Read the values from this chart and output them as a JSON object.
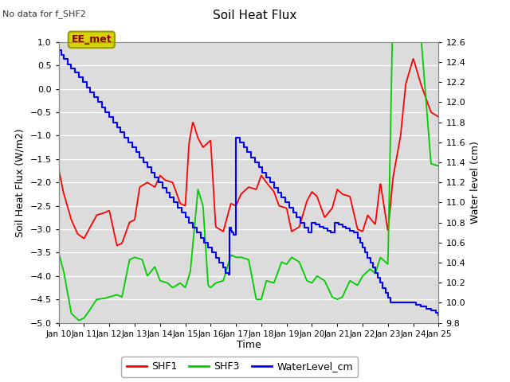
{
  "title": "Soil Heat Flux",
  "title_note": "No data for f_SHF2",
  "ylabel_left": "Soil Heat Flux (W/m2)",
  "ylabel_right": "Water level (cm)",
  "xlabel": "Time",
  "ylim_left": [
    -5.0,
    1.0
  ],
  "ylim_right": [
    9.8,
    12.6
  ],
  "xtick_labels": [
    "Jan 10",
    "Jan 11",
    "Jan 12",
    "Jan 13",
    "Jan 14",
    "Jan 15",
    "Jan 16",
    "Jan 17",
    "Jan 18",
    "Jan 19",
    "Jan 20",
    "Jan 21",
    "Jan 22",
    "Jan 23",
    "Jan 24",
    "Jan 25"
  ],
  "ee_met_label": "EE_met",
  "bg_color": "#dcdcdc",
  "color_shf1": "#ff0000",
  "color_shf3": "#00cc00",
  "color_wl": "#0000ff",
  "shf1_x": [
    0.0,
    0.18,
    0.5,
    0.75,
    1.0,
    1.2,
    1.5,
    1.8,
    2.0,
    2.3,
    2.5,
    2.8,
    3.0,
    3.2,
    3.5,
    3.8,
    4.0,
    4.2,
    4.5,
    4.8,
    5.0,
    5.15,
    5.3,
    5.5,
    5.7,
    6.0,
    6.2,
    6.5,
    6.8,
    7.0,
    7.2,
    7.5,
    7.8,
    8.0,
    8.2,
    8.5,
    8.7,
    9.0,
    9.2,
    9.5,
    9.8,
    10.0,
    10.2,
    10.5,
    10.8,
    11.0,
    11.2,
    11.5,
    11.8,
    12.0,
    12.2,
    12.5,
    12.7,
    13.0,
    13.2,
    13.5,
    13.7,
    14.0,
    14.3,
    14.7,
    15.0
  ],
  "shf1_y": [
    -1.7,
    -2.2,
    -2.8,
    -3.1,
    -3.2,
    -3.0,
    -2.7,
    -2.65,
    -2.6,
    -3.35,
    -3.3,
    -2.85,
    -2.8,
    -2.1,
    -2.0,
    -2.1,
    -1.85,
    -1.95,
    -2.0,
    -2.45,
    -2.5,
    -1.15,
    -0.7,
    -1.05,
    -1.25,
    -1.1,
    -2.95,
    -3.05,
    -2.45,
    -2.5,
    -2.25,
    -2.1,
    -2.15,
    -1.85,
    -2.0,
    -2.2,
    -2.5,
    -2.55,
    -3.05,
    -2.95,
    -2.4,
    -2.2,
    -2.3,
    -2.75,
    -2.55,
    -2.15,
    -2.25,
    -2.3,
    -3.0,
    -3.05,
    -2.7,
    -2.9,
    -2.0,
    -3.05,
    -1.9,
    -1.0,
    0.1,
    0.65,
    0.1,
    -0.5,
    -0.6
  ],
  "shf3_x": [
    0.0,
    0.2,
    0.5,
    0.8,
    1.0,
    1.2,
    1.5,
    1.8,
    2.0,
    2.3,
    2.5,
    2.8,
    3.0,
    3.3,
    3.5,
    3.8,
    4.0,
    4.3,
    4.5,
    4.8,
    5.0,
    5.2,
    5.5,
    5.7,
    5.9,
    6.0,
    6.2,
    6.5,
    6.8,
    7.0,
    7.2,
    7.5,
    7.8,
    8.0,
    8.2,
    8.5,
    8.8,
    9.0,
    9.2,
    9.5,
    9.8,
    10.0,
    10.2,
    10.5,
    10.8,
    11.0,
    11.2,
    11.5,
    11.8,
    12.0,
    12.3,
    12.5,
    12.7,
    13.0,
    13.2,
    13.5,
    13.7,
    14.0,
    14.3,
    14.7,
    15.0
  ],
  "shf3_y": [
    -3.5,
    -3.9,
    -4.8,
    -4.95,
    -4.9,
    -4.75,
    -4.5,
    -4.48,
    -4.45,
    -4.4,
    -4.45,
    -3.65,
    -3.6,
    -3.65,
    -4.0,
    -3.8,
    -4.1,
    -4.15,
    -4.25,
    -4.15,
    -4.25,
    -3.9,
    -2.15,
    -2.5,
    -4.2,
    -4.25,
    -4.15,
    -4.1,
    -3.55,
    -3.6,
    -3.6,
    -3.65,
    -4.5,
    -4.5,
    -4.1,
    -4.15,
    -3.7,
    -3.75,
    -3.6,
    -3.7,
    -4.1,
    -4.15,
    -4.0,
    -4.1,
    -4.45,
    -4.5,
    -4.45,
    -4.1,
    -4.2,
    -4.0,
    -3.85,
    -3.95,
    -3.6,
    -3.75,
    1.85,
    1.9,
    1.55,
    1.3,
    1.15,
    -1.6,
    -1.65
  ],
  "wl_x": [
    0.0,
    0.1,
    0.2,
    0.35,
    0.5,
    0.65,
    0.8,
    0.95,
    1.1,
    1.25,
    1.4,
    1.55,
    1.7,
    1.85,
    2.0,
    2.15,
    2.3,
    2.45,
    2.6,
    2.75,
    2.9,
    3.05,
    3.2,
    3.35,
    3.5,
    3.65,
    3.8,
    3.95,
    4.1,
    4.25,
    4.4,
    4.55,
    4.7,
    4.85,
    5.0,
    5.15,
    5.3,
    5.45,
    5.6,
    5.75,
    5.9,
    6.05,
    6.2,
    6.35,
    6.5,
    6.6,
    6.7,
    6.75,
    6.8,
    6.85,
    6.9,
    7.0,
    7.15,
    7.3,
    7.45,
    7.6,
    7.75,
    7.9,
    8.05,
    8.2,
    8.35,
    8.5,
    8.65,
    8.8,
    8.95,
    9.1,
    9.25,
    9.4,
    9.55,
    9.7,
    9.85,
    10.0,
    10.15,
    10.3,
    10.45,
    10.6,
    10.75,
    10.9,
    11.05,
    11.2,
    11.35,
    11.5,
    11.65,
    11.8,
    11.9,
    12.0,
    12.1,
    12.2,
    12.3,
    12.4,
    12.5,
    12.6,
    12.7,
    12.8,
    12.9,
    13.0,
    13.1,
    13.2,
    13.3,
    13.5,
    13.7,
    13.9,
    14.1,
    14.3,
    14.5,
    14.7,
    14.9,
    15.0
  ],
  "wl_y": [
    12.52,
    12.47,
    12.43,
    12.38,
    12.34,
    12.3,
    12.25,
    12.2,
    12.15,
    12.1,
    12.05,
    12.0,
    11.95,
    11.9,
    11.85,
    11.8,
    11.75,
    11.7,
    11.65,
    11.6,
    11.55,
    11.5,
    11.45,
    11.4,
    11.35,
    11.3,
    11.25,
    11.2,
    11.15,
    11.1,
    11.05,
    11.0,
    10.95,
    10.9,
    10.85,
    10.8,
    10.75,
    10.7,
    10.65,
    10.6,
    10.55,
    10.5,
    10.45,
    10.4,
    10.35,
    10.3,
    10.28,
    10.75,
    10.72,
    10.7,
    10.68,
    11.65,
    11.6,
    11.55,
    11.5,
    11.45,
    11.4,
    11.35,
    11.3,
    11.25,
    11.2,
    11.15,
    11.1,
    11.05,
    11.0,
    10.95,
    10.9,
    10.85,
    10.8,
    10.75,
    10.7,
    10.8,
    10.78,
    10.76,
    10.74,
    10.72,
    10.7,
    10.8,
    10.78,
    10.76,
    10.74,
    10.72,
    10.7,
    10.65,
    10.6,
    10.55,
    10.5,
    10.45,
    10.4,
    10.35,
    10.3,
    10.25,
    10.2,
    10.15,
    10.1,
    10.05,
    10.0,
    10.0,
    10.0,
    10.0,
    10.0,
    10.0,
    9.98,
    9.96,
    9.94,
    9.92,
    9.9,
    9.88
  ]
}
